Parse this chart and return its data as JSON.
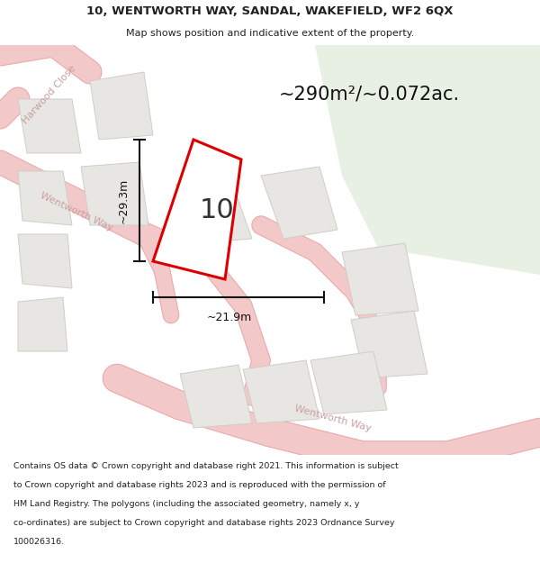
{
  "title_line1": "10, WENTWORTH WAY, SANDAL, WAKEFIELD, WF2 6QX",
  "title_line2": "Map shows position and indicative extent of the property.",
  "area_label": "~290m²/~0.072ac.",
  "plot_number": "10",
  "dim_width": "~21.9m",
  "dim_height": "~29.3m",
  "street1": "Harwood Close",
  "street2_upper": "Wentworth Way",
  "street2_lower": "Wentworth Way",
  "footer_lines": [
    "Contains OS data © Crown copyright and database right 2021. This information is subject",
    "to Crown copyright and database rights 2023 and is reproduced with the permission of",
    "HM Land Registry. The polygons (including the associated geometry, namely x, y",
    "co-ordinates) are subject to Crown copyright and database rights 2023 Ordnance Survey",
    "100026316."
  ],
  "map_bg": "#f5f5f3",
  "road_color": "#f2c8c8",
  "road_stroke": "#e8a8a8",
  "block_fill": "#e8e6e2",
  "block_stroke": "#d0cdc8",
  "plot_fill": "#ffffff",
  "plot_outline": "#dd0000",
  "green_area": "#e8f0e4",
  "title_color": "#222222",
  "footer_color": "#222222",
  "street_label_color": "#c8a0a0",
  "block_label_color": "#999999",
  "dim_color": "#111111",
  "area_label_color": "#111111"
}
